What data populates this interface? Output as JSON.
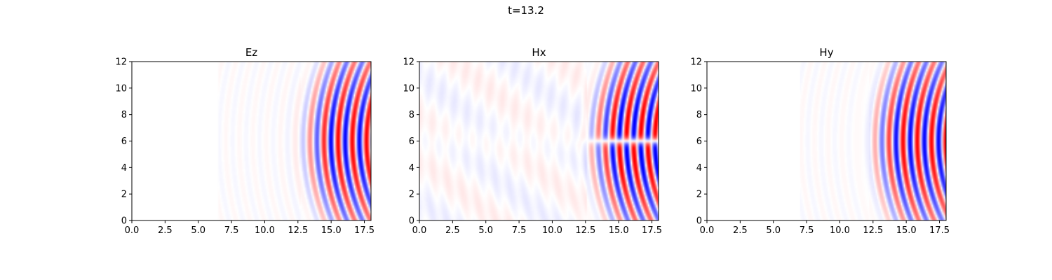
{
  "figure": {
    "suptitle": "t=13.2"
  },
  "chart_data": [
    {
      "type": "heatmap",
      "title": "Ez",
      "xlabel": "",
      "ylabel": "",
      "xlim": [
        0,
        18
      ],
      "ylim": [
        0,
        12
      ],
      "x_ticks": [
        "0.0",
        "2.5",
        "5.0",
        "7.5",
        "10.0",
        "12.5",
        "15.0",
        "17.5"
      ],
      "y_ticks": [
        "0",
        "2",
        "4",
        "6",
        "8",
        "10",
        "12"
      ],
      "colormap": "bwr",
      "colors": {
        "positive": "#ff0000",
        "zero": "#ffffff",
        "negative": "#0000ff"
      },
      "field": {
        "wavefront_x": 12.7,
        "source_center": [
          30.5,
          6
        ],
        "wavelength": 1.07,
        "amplitude_max": 1.0,
        "noise_start_x": 6.5,
        "symmetry_about_y6": "even"
      },
      "grid": false
    },
    {
      "type": "heatmap",
      "title": "Hx",
      "xlabel": "",
      "ylabel": "",
      "xlim": [
        0,
        18
      ],
      "ylim": [
        0,
        12
      ],
      "x_ticks": [
        "0.0",
        "2.5",
        "5.0",
        "7.5",
        "10.0",
        "12.5",
        "15.0",
        "17.5"
      ],
      "y_ticks": [
        "0",
        "2",
        "4",
        "6",
        "8",
        "10",
        "12"
      ],
      "colormap": "bwr",
      "colors": {
        "positive": "#ff0000",
        "zero": "#ffffff",
        "negative": "#0000ff"
      },
      "field": {
        "wavefront_x": 12.6,
        "source_center": [
          30.5,
          6
        ],
        "wavelength": 1.07,
        "amplitude_max": 1.0,
        "noise_start_x": 0,
        "symmetry_about_y6": "odd"
      },
      "grid": false
    },
    {
      "type": "heatmap",
      "title": "Hy",
      "xlabel": "",
      "ylabel": "",
      "xlim": [
        0,
        18
      ],
      "ylim": [
        0,
        12
      ],
      "x_ticks": [
        "0.0",
        "2.5",
        "5.0",
        "7.5",
        "10.0",
        "12.5",
        "15.0",
        "17.5"
      ],
      "y_ticks": [
        "0",
        "2",
        "4",
        "6",
        "8",
        "10",
        "12"
      ],
      "colormap": "bwr",
      "colors": {
        "positive": "#ff0000",
        "zero": "#ffffff",
        "negative": "#0000ff"
      },
      "field": {
        "wavefront_x": 12.2,
        "source_center": [
          30.5,
          6
        ],
        "wavelength": 1.07,
        "amplitude_max": 1.0,
        "noise_start_x": 7,
        "symmetry_about_y6": "even"
      },
      "grid": false
    }
  ]
}
